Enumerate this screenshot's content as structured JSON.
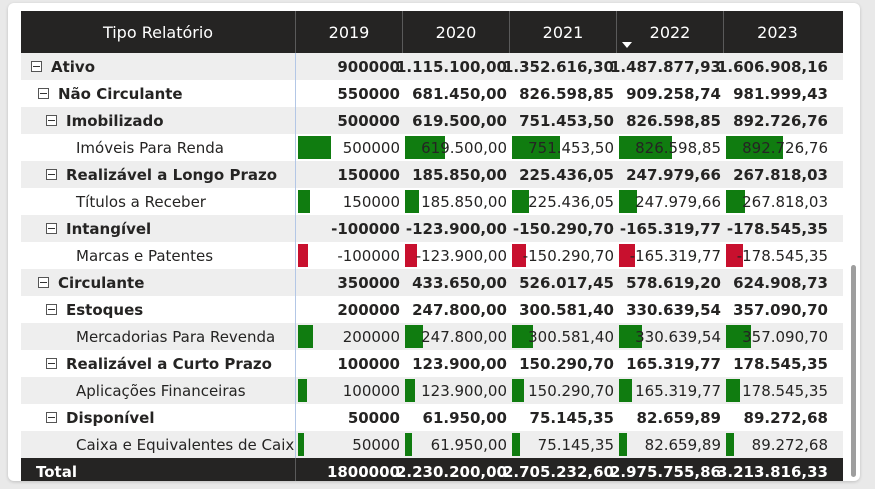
{
  "header": {
    "label": "Tipo Relatório",
    "years": [
      "2019",
      "2020",
      "2021",
      "2022",
      "2023"
    ]
  },
  "rows": [
    {
      "label": "Ativo",
      "level": 0,
      "bold": true,
      "toggle": true,
      "values": [
        "900000",
        "1.115.100,00",
        "1.352.616,30",
        "1.487.877,93",
        "1.606.908,16"
      ]
    },
    {
      "label": "Não Circulante",
      "level": 1,
      "bold": true,
      "toggle": true,
      "values": [
        "550000",
        "681.450,00",
        "826.598,85",
        "909.258,74",
        "981.999,43"
      ]
    },
    {
      "label": "Imobilizado",
      "level": 2,
      "bold": true,
      "toggle": true,
      "values": [
        "500000",
        "619.500,00",
        "751.453,50",
        "826.598,85",
        "892.726,76"
      ]
    },
    {
      "label": "Imóveis Para Renda",
      "level": 3,
      "bold": false,
      "toggle": false,
      "values": [
        "500000",
        "619.500,00",
        "751.453,50",
        "826.598,85",
        "892.726,76"
      ],
      "bars": [
        500000,
        619500,
        751453.5,
        826598.85,
        892726.76
      ]
    },
    {
      "label": "Realizável a Longo Prazo",
      "level": 2,
      "bold": true,
      "toggle": true,
      "values": [
        "150000",
        "185.850,00",
        "225.436,05",
        "247.979,66",
        "267.818,03"
      ]
    },
    {
      "label": "Títulos a Receber",
      "level": 3,
      "bold": false,
      "toggle": false,
      "values": [
        "150000",
        "185.850,00",
        "225.436,05",
        "247.979,66",
        "267.818,03"
      ],
      "bars": [
        150000,
        185850,
        225436.05,
        247979.66,
        267818.03
      ]
    },
    {
      "label": "Intangível",
      "level": 2,
      "bold": true,
      "toggle": true,
      "values": [
        "-100000",
        "-123.900,00",
        "-150.290,70",
        "-165.319,77",
        "-178.545,35"
      ]
    },
    {
      "label": "Marcas e Patentes",
      "level": 3,
      "bold": false,
      "toggle": false,
      "values": [
        "-100000",
        "-123.900,00",
        "-150.290,70",
        "-165.319,77",
        "-178.545,35"
      ],
      "bars": [
        -100000,
        -123900,
        -150290.7,
        -165319.77,
        -178545.35
      ]
    },
    {
      "label": "Circulante",
      "level": 1,
      "bold": true,
      "toggle": true,
      "values": [
        "350000",
        "433.650,00",
        "526.017,45",
        "578.619,20",
        "624.908,73"
      ]
    },
    {
      "label": "Estoques",
      "level": 2,
      "bold": true,
      "toggle": true,
      "values": [
        "200000",
        "247.800,00",
        "300.581,40",
        "330.639,54",
        "357.090,70"
      ]
    },
    {
      "label": "Mercadorias Para Revenda",
      "level": 3,
      "bold": false,
      "toggle": false,
      "values": [
        "200000",
        "247.800,00",
        "300.581,40",
        "330.639,54",
        "357.090,70"
      ],
      "bars": [
        200000,
        247800,
        300581.4,
        330639.54,
        357090.7
      ]
    },
    {
      "label": "Realizável a Curto Prazo",
      "level": 2,
      "bold": true,
      "toggle": true,
      "values": [
        "100000",
        "123.900,00",
        "150.290,70",
        "165.319,77",
        "178.545,35"
      ]
    },
    {
      "label": "Aplicações Financeiras",
      "level": 3,
      "bold": false,
      "toggle": false,
      "values": [
        "100000",
        "123.900,00",
        "150.290,70",
        "165.319,77",
        "178.545,35"
      ],
      "bars": [
        100000,
        123900,
        150290.7,
        165319.77,
        178545.35
      ]
    },
    {
      "label": "Disponível",
      "level": 2,
      "bold": true,
      "toggle": true,
      "values": [
        "50000",
        "61.950,00",
        "75.145,35",
        "82.659,89",
        "89.272,68"
      ]
    },
    {
      "label": "Caixa e Equivalentes de Caixa",
      "level": 3,
      "bold": false,
      "toggle": false,
      "values": [
        "50000",
        "61.950,00",
        "75.145,35",
        "82.659,89",
        "89.272,68"
      ],
      "bars": [
        50000,
        61950,
        75145.35,
        82659.89,
        89272.68
      ]
    }
  ],
  "total": {
    "label": "Total",
    "values": [
      "1800000",
      "2.230.200,00",
      "2.705.232,60",
      "2.975.755,86",
      "3.213.816,33"
    ]
  },
  "colors": {
    "positive_bar": "#107c10",
    "negative_bar": "#c8102e",
    "header_bg": "#252423"
  }
}
